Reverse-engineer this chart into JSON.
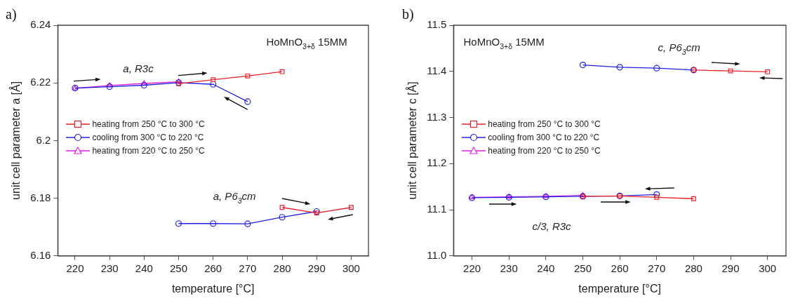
{
  "chart_data": [
    {
      "type": "line",
      "title": "a)",
      "xlabel": "temperature [°C]",
      "ylabel": "unit cell parameter a [Å]",
      "xlim": [
        215,
        305
      ],
      "xticks": [
        220,
        230,
        240,
        250,
        260,
        270,
        280,
        290,
        300
      ],
      "ylim": [
        6.16,
        6.24
      ],
      "yticks": [
        6.16,
        6.18,
        6.2,
        6.22,
        6.24
      ],
      "grid": false,
      "legend": "left",
      "line_style": "solid",
      "annotations": [
        "HoMnO$_{3+δ}$ 15MM",
        "a, R3c",
        "a, P6$_{3}$cm"
      ],
      "series": [
        {
          "name": "heating from 250 °C to 300 °C",
          "color": "#e8202a",
          "marker": "square",
          "x": [
            250,
            260,
            270,
            280
          ],
          "values": [
            6.2197,
            6.2211,
            6.2224,
            6.2239
          ]
        },
        {
          "color": "#e8202a",
          "marker": "square",
          "x": [
            280,
            290,
            300
          ],
          "values": [
            6.1768,
            6.1749,
            6.1768
          ]
        },
        {
          "name": "cooling from 300 °C to 220 °C",
          "color": "#2020e0",
          "marker": "circle",
          "x": [
            290,
            280,
            270,
            260,
            250
          ],
          "values": [
            6.1754,
            6.1734,
            6.1711,
            6.1712,
            6.1712
          ]
        },
        {
          "color": "#2020e0",
          "marker": "circle",
          "x": [
            270,
            260,
            250,
            240,
            230,
            220
          ],
          "values": [
            6.2135,
            6.2195,
            6.2201,
            6.2192,
            6.2187,
            6.2182
          ]
        },
        {
          "name": "heating from 220 °C to 250 °C",
          "color": "#e020e0",
          "marker": "triangle",
          "x": [
            220,
            230,
            240,
            250
          ],
          "values": [
            6.2181,
            6.2191,
            6.2198,
            6.2204
          ]
        }
      ]
    },
    {
      "type": "line",
      "title": "b)",
      "xlabel": "temperature [°C]",
      "ylabel": "unit cell parameter c [Å]",
      "xlim": [
        215,
        305
      ],
      "xticks": [
        220,
        230,
        240,
        250,
        260,
        270,
        280,
        290,
        300
      ],
      "ylim": [
        11.0,
        11.5
      ],
      "yticks": [
        {
          "value": 11.0,
          "label": "11.0"
        },
        11.1,
        11.2,
        11.3,
        11.4,
        11.5
      ],
      "grid": false,
      "legend": "left",
      "line_style": "solid",
      "annotations": [
        "HoMnO$_{3+δ}$ 15MM",
        "c, P6$_{3}$cm",
        "c/3, R3c"
      ],
      "series": [
        {
          "name": "heating from 250 °C to 300 °C",
          "color": "#e8202a",
          "marker": "square",
          "x": [
            280,
            290,
            300
          ],
          "values": [
            11.403,
            11.401,
            11.399
          ]
        },
        {
          "color": "#e8202a",
          "marker": "square",
          "x": [
            250,
            260,
            270,
            280
          ],
          "values": [
            11.129,
            11.13,
            11.127,
            11.124
          ]
        },
        {
          "name": "cooling from 300 °C to 220 °C",
          "color": "#2020e0",
          "marker": "circle",
          "x": [
            280,
            270,
            260,
            250
          ],
          "values": [
            11.403,
            11.407,
            11.409,
            11.414
          ]
        },
        {
          "color": "#2020e0",
          "marker": "circle",
          "x": [
            270,
            260,
            250,
            240,
            230,
            220
          ],
          "values": [
            11.133,
            11.13,
            11.129,
            11.128,
            11.127,
            11.126
          ]
        },
        {
          "name": "heating from 220 °C to 250 °C",
          "color": "#e020e0",
          "marker": "triangle",
          "x": [
            220,
            230,
            240,
            250
          ],
          "values": [
            11.127,
            11.128,
            11.129,
            11.131
          ]
        }
      ]
    }
  ]
}
